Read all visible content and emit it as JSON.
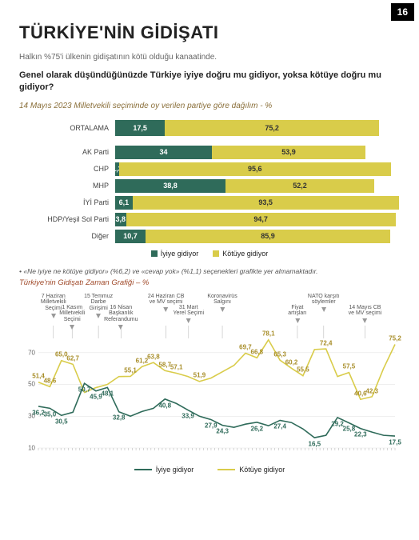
{
  "page_number": "16",
  "title": "TÜRKİYE'NİN GİDİŞATI",
  "subtitle": "Halkın %75'i ülkenin gidişatının kötü olduğu kanaatinde.",
  "question": "Genel olarak düşündüğünüzde Türkiye iyiye doğru mu gidiyor, yoksa kötüye doğru mu gidiyor?",
  "breakdown_title": "14 Mayıs 2023 Milletvekili seçiminde oy verilen partiye göre dağılım - %",
  "breakdown_color": "#8a6f3a",
  "colors": {
    "good": "#2f6b5a",
    "bad": "#d9cc4a",
    "grid": "#e5e5e5",
    "axis": "#cccccc"
  },
  "bar_chart": {
    "average_label": "ORTALAMA",
    "legend_good": "İyiye gidiyor",
    "legend_bad": "Kötüye gidiyor",
    "average": {
      "good": 17.5,
      "bad": 75.2
    },
    "rows": [
      {
        "label": "AK Parti",
        "good": 34.0,
        "bad": 53.9
      },
      {
        "label": "CHP",
        "good": 1.3,
        "bad": 95.6
      },
      {
        "label": "MHP",
        "good": 38.8,
        "bad": 52.2
      },
      {
        "label": "İYİ Parti",
        "good": 6.1,
        "bad": 93.5
      },
      {
        "label": "HDP/Yeşil Sol Parti",
        "good": 3.8,
        "bad": 94.7
      },
      {
        "label": "Diğer",
        "good": 10.7,
        "bad": 85.9
      }
    ]
  },
  "footnote": "• «Ne iyiye ne kötüye gidiyor» (%6,2) ve «cevap yok» (%1,1) seçenekleri grafikte yer almamaktadır.",
  "time_chart": {
    "title": "Türkiye'nin Gidişatı Zaman Grafiği – %",
    "title_color": "#a04a2a",
    "ymin": 10,
    "ymax": 80,
    "yticks": [
      10,
      30,
      50,
      70
    ],
    "legend_good": "İyiye gidiyor",
    "legend_bad": "Kötüye gidiyor",
    "annotations": [
      {
        "x": 4,
        "text": "7 Haziran\nMilletvekili\nSeçimi"
      },
      {
        "x": 9,
        "text": "1 Kasım\nMilletvekili\nSeçimi"
      },
      {
        "x": 16,
        "text": "15 Temmuz\nDarbe\nGirişimi"
      },
      {
        "x": 22,
        "text": "16 Nisan\nBaşkanlık\nReferandumu"
      },
      {
        "x": 34,
        "text": "24 Haziran CB\nve MV seçimi"
      },
      {
        "x": 40,
        "text": "31 Mart\nYerel Seçimi"
      },
      {
        "x": 49,
        "text": "Koronavirüs\nSalgını"
      },
      {
        "x": 69,
        "text": "Fiyat\nartışları"
      },
      {
        "x": 76,
        "text": "NATO karşıtı\nsöylemler"
      },
      {
        "x": 87,
        "text": "14 Mayıs CB\nve MV seçimi"
      }
    ],
    "good_series": [
      36.2,
      35.0,
      30.5,
      32.5,
      50.7,
      45.9,
      48.1,
      32.8,
      30.0,
      33.0,
      35.0,
      40.8,
      38.0,
      33.9,
      30.0,
      27.9,
      24.3,
      23.0,
      25.0,
      26.2,
      24.0,
      27.4,
      26.0,
      22.0,
      16.5,
      18.0,
      29.2,
      25.8,
      22.3,
      20.0,
      18.0,
      17.5
    ],
    "good_labels": [
      {
        "i": 0,
        "v": "36,2"
      },
      {
        "i": 1,
        "v": "35,0"
      },
      {
        "i": 2,
        "v": "30,5"
      },
      {
        "i": 4,
        "v": "50,7"
      },
      {
        "i": 5,
        "v": "45,9"
      },
      {
        "i": 6,
        "v": "48,1"
      },
      {
        "i": 7,
        "v": "32,8"
      },
      {
        "i": 11,
        "v": "40,8"
      },
      {
        "i": 13,
        "v": "33,9"
      },
      {
        "i": 15,
        "v": "27,9"
      },
      {
        "i": 16,
        "v": "24,3"
      },
      {
        "i": 19,
        "v": "26,2"
      },
      {
        "i": 21,
        "v": "27,4"
      },
      {
        "i": 24,
        "v": "16,5"
      },
      {
        "i": 26,
        "v": "29,2"
      },
      {
        "i": 27,
        "v": "25,8"
      },
      {
        "i": 28,
        "v": "22,3"
      },
      {
        "i": 31,
        "v": "17,5"
      }
    ],
    "bad_series": [
      51.4,
      48.6,
      65.0,
      62.7,
      45.0,
      48.0,
      50.0,
      55.0,
      55.1,
      61.2,
      63.8,
      58.7,
      57.1,
      55.0,
      51.9,
      54.0,
      58.0,
      62.0,
      69.7,
      66.8,
      78.1,
      65.3,
      60.2,
      55.5,
      72.0,
      72.4,
      55.0,
      57.5,
      40.6,
      42.3,
      60.0,
      75.2
    ],
    "bad_labels": [
      {
        "i": 0,
        "v": "51,4"
      },
      {
        "i": 1,
        "v": "48,6"
      },
      {
        "i": 2,
        "v": "65,0"
      },
      {
        "i": 3,
        "v": "62,7"
      },
      {
        "i": 8,
        "v": "55,1"
      },
      {
        "i": 9,
        "v": "61,2"
      },
      {
        "i": 10,
        "v": "63,8"
      },
      {
        "i": 11,
        "v": "58,7"
      },
      {
        "i": 12,
        "v": "57,1"
      },
      {
        "i": 14,
        "v": "51,9"
      },
      {
        "i": 18,
        "v": "69,7"
      },
      {
        "i": 19,
        "v": "66,8"
      },
      {
        "i": 20,
        "v": "78,1"
      },
      {
        "i": 21,
        "v": "65,3"
      },
      {
        "i": 22,
        "v": "60,2"
      },
      {
        "i": 23,
        "v": "55,5"
      },
      {
        "i": 25,
        "v": "72,4"
      },
      {
        "i": 27,
        "v": "57,5"
      },
      {
        "i": 28,
        "v": "40,6"
      },
      {
        "i": 29,
        "v": "42,3"
      },
      {
        "i": 31,
        "v": "75,2"
      }
    ]
  }
}
